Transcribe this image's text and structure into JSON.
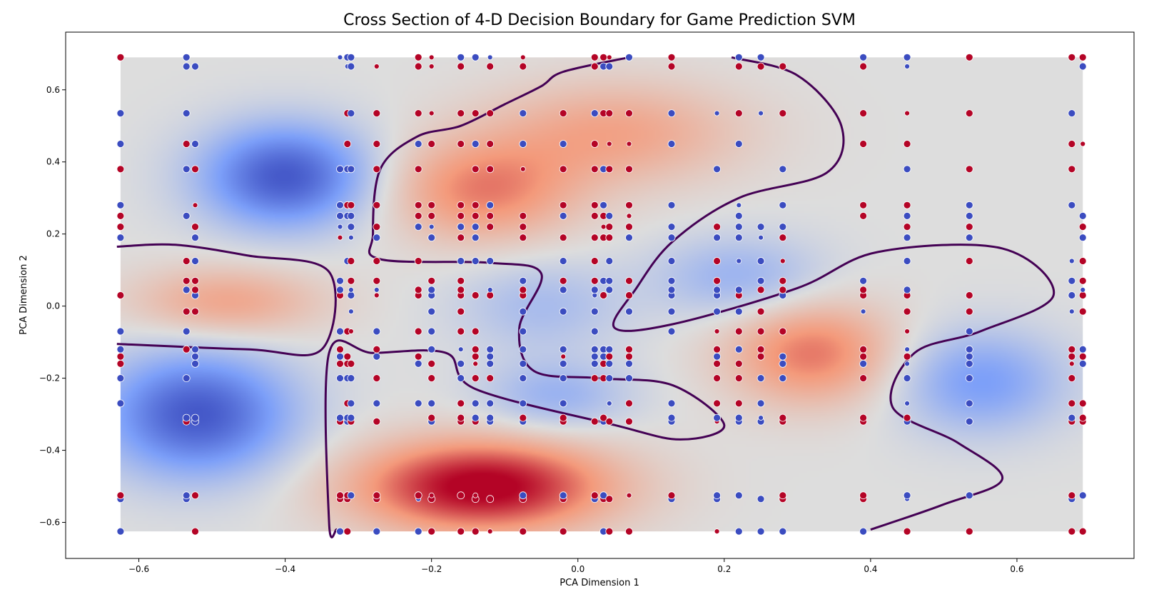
{
  "chart_data": {
    "type": "scatter",
    "title": "Cross Section of 4-D Decision Boundary for Game Prediction SVM",
    "xlabel": "PCA Dimension 1",
    "ylabel": "PCA Dimension 2",
    "xlim": [
      -0.7,
      0.76
    ],
    "ylim": [
      -0.7,
      0.76
    ],
    "x_ticks": [
      {
        "value": -0.6,
        "label": "−0.6"
      },
      {
        "value": -0.4,
        "label": "−0.4"
      },
      {
        "value": -0.2,
        "label": "−0.2"
      },
      {
        "value": 0.0,
        "label": "0.0"
      },
      {
        "value": 0.2,
        "label": "0.2"
      },
      {
        "value": 0.4,
        "label": "0.4"
      },
      {
        "value": 0.6,
        "label": "0.6"
      }
    ],
    "y_ticks": [
      {
        "value": -0.6,
        "label": "−0.6"
      },
      {
        "value": -0.4,
        "label": "−0.4"
      },
      {
        "value": -0.2,
        "label": "−0.2"
      },
      {
        "value": 0.0,
        "label": "0.0"
      },
      {
        "value": 0.2,
        "label": "0.2"
      },
      {
        "value": 0.4,
        "label": "0.4"
      },
      {
        "value": 0.6,
        "label": "0.6"
      }
    ],
    "grid": false,
    "colormap": "coolwarm",
    "colors": {
      "class_pos": "#b40426",
      "class_neg": "#3b4cc0",
      "boundary": "#440154"
    },
    "decision_region": {
      "x_range": [
        -0.625,
        0.69
      ],
      "y_range": [
        -0.625,
        0.69
      ]
    },
    "decision_function_centers": [
      {
        "x": -0.4,
        "y": 0.36,
        "weight": -1.2,
        "sx": 0.08,
        "sy": 0.1
      },
      {
        "x": -0.52,
        "y": -0.3,
        "weight": -1.2,
        "sx": 0.09,
        "sy": 0.12
      },
      {
        "x": -0.48,
        "y": 0.01,
        "weight": 0.55,
        "sx": 0.09,
        "sy": 0.07
      },
      {
        "x": -0.13,
        "y": -0.5,
        "weight": 1.4,
        "sx": 0.12,
        "sy": 0.09
      },
      {
        "x": -0.13,
        "y": 0.32,
        "weight": 0.75,
        "sx": 0.09,
        "sy": 0.1
      },
      {
        "x": 0.05,
        "y": 0.48,
        "weight": 0.55,
        "sx": 0.12,
        "sy": 0.1
      },
      {
        "x": 0.32,
        "y": -0.13,
        "weight": 0.8,
        "sx": 0.08,
        "sy": 0.1
      },
      {
        "x": 0.55,
        "y": -0.21,
        "weight": -0.65,
        "sx": 0.08,
        "sy": 0.1
      },
      {
        "x": -0.03,
        "y": -0.25,
        "weight": -0.45,
        "sx": 0.07,
        "sy": 0.07
      },
      {
        "x": 0.22,
        "y": 0.08,
        "weight": -0.45,
        "sx": 0.08,
        "sy": 0.08
      },
      {
        "x": -0.05,
        "y": 0.0,
        "weight": -0.35,
        "sx": 0.08,
        "sy": 0.09
      }
    ],
    "boundary_curves": [
      [
        [
          -0.63,
          0.165
        ],
        [
          -0.55,
          0.17
        ],
        [
          -0.45,
          0.14
        ],
        [
          -0.34,
          0.095
        ],
        [
          -0.35,
          -0.12
        ],
        [
          -0.45,
          -0.12
        ],
        [
          -0.63,
          -0.105
        ]
      ],
      [
        [
          0.07,
          0.69
        ],
        [
          -0.02,
          0.65
        ],
        [
          -0.05,
          0.61
        ],
        [
          -0.1,
          0.56
        ],
        [
          -0.16,
          0.5
        ],
        [
          -0.22,
          0.47
        ],
        [
          -0.27,
          0.38
        ],
        [
          -0.28,
          0.2
        ],
        [
          -0.27,
          0.13
        ],
        [
          -0.12,
          0.12
        ],
        [
          -0.05,
          0.09
        ],
        [
          -0.08,
          -0.06
        ],
        [
          -0.06,
          -0.18
        ],
        [
          0.03,
          -0.2
        ],
        [
          0.13,
          -0.22
        ],
        [
          0.2,
          -0.33
        ],
        [
          0.14,
          -0.37
        ],
        [
          0.05,
          -0.33
        ],
        [
          -0.14,
          -0.23
        ],
        [
          -0.18,
          -0.13
        ],
        [
          -0.28,
          -0.13
        ],
        [
          -0.34,
          -0.13
        ],
        [
          -0.34,
          -0.6
        ],
        [
          -0.33,
          -0.62
        ]
      ],
      [
        [
          0.21,
          0.69
        ],
        [
          0.3,
          0.64
        ],
        [
          0.36,
          0.5
        ],
        [
          0.34,
          0.37
        ],
        [
          0.22,
          0.3
        ],
        [
          0.13,
          0.18
        ],
        [
          0.08,
          0.05
        ],
        [
          0.05,
          -0.06
        ],
        [
          0.13,
          -0.05
        ],
        [
          0.3,
          0.05
        ],
        [
          0.41,
          0.15
        ],
        [
          0.58,
          0.16
        ],
        [
          0.65,
          0.03
        ],
        [
          0.55,
          -0.07
        ],
        [
          0.46,
          -0.13
        ],
        [
          0.43,
          -0.28
        ],
        [
          0.52,
          -0.38
        ],
        [
          0.58,
          -0.48
        ],
        [
          0.5,
          -0.55
        ],
        [
          0.4,
          -0.62
        ]
      ]
    ],
    "x_grid": [
      -0.625,
      -0.535,
      -0.523,
      -0.325,
      -0.315,
      -0.31,
      -0.275,
      -0.218,
      -0.2,
      -0.16,
      -0.14,
      -0.12,
      -0.075,
      -0.02,
      0.023,
      0.035,
      0.043,
      0.07,
      0.128,
      0.19,
      0.22,
      0.25,
      0.28,
      0.39,
      0.45,
      0.535,
      0.675,
      0.69
    ],
    "y_grid": [
      -0.625,
      -0.535,
      -0.525,
      -0.32,
      -0.31,
      -0.27,
      -0.2,
      -0.16,
      -0.14,
      -0.12,
      -0.07,
      -0.015,
      0.03,
      0.045,
      0.07,
      0.125,
      0.19,
      0.22,
      0.25,
      0.28,
      0.38,
      0.45,
      0.535,
      0.665,
      0.69
    ],
    "point_seed": 20240611
  }
}
